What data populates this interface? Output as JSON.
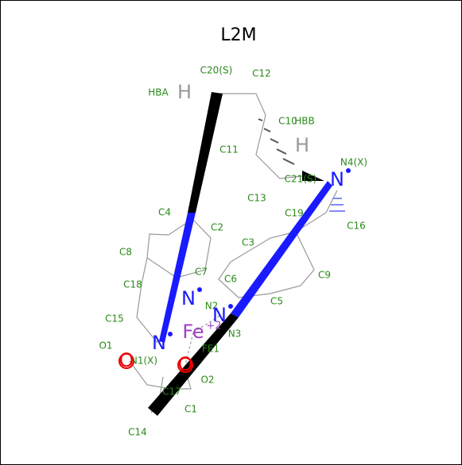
{
  "title": "L2M",
  "labels": [
    {
      "text": "C20(S)"
    },
    {
      "text": "C12"
    },
    {
      "text": "HBA"
    },
    {
      "text": "C10"
    },
    {
      "text": "HBB"
    },
    {
      "text": "C11"
    },
    {
      "text": "C21(S)"
    },
    {
      "text": "N4(X)"
    },
    {
      "text": "C13"
    },
    {
      "text": "C19"
    },
    {
      "text": "C4"
    },
    {
      "text": "C16"
    },
    {
      "text": "C2"
    },
    {
      "text": "C8"
    },
    {
      "text": "C3"
    },
    {
      "text": "C7"
    },
    {
      "text": "C6"
    },
    {
      "text": "C9"
    },
    {
      "text": "C18"
    },
    {
      "text": "N2"
    },
    {
      "text": "C5"
    },
    {
      "text": "C15"
    },
    {
      "text": "N3"
    },
    {
      "text": "FE1"
    },
    {
      "text": "O1"
    },
    {
      "text": "N1(X)"
    },
    {
      "text": "O2"
    },
    {
      "text": "C17"
    },
    {
      "text": "C1"
    },
    {
      "text": "C14"
    }
  ],
  "atoms": [
    {
      "symbol": "H"
    },
    {
      "symbol": "H"
    },
    {
      "symbol": "N"
    },
    {
      "symbol": "N"
    },
    {
      "symbol": "N"
    },
    {
      "symbol": "N"
    },
    {
      "symbol": "Fe",
      "charge": "+2"
    },
    {
      "symbol": "O"
    },
    {
      "symbol": "O"
    }
  ]
}
